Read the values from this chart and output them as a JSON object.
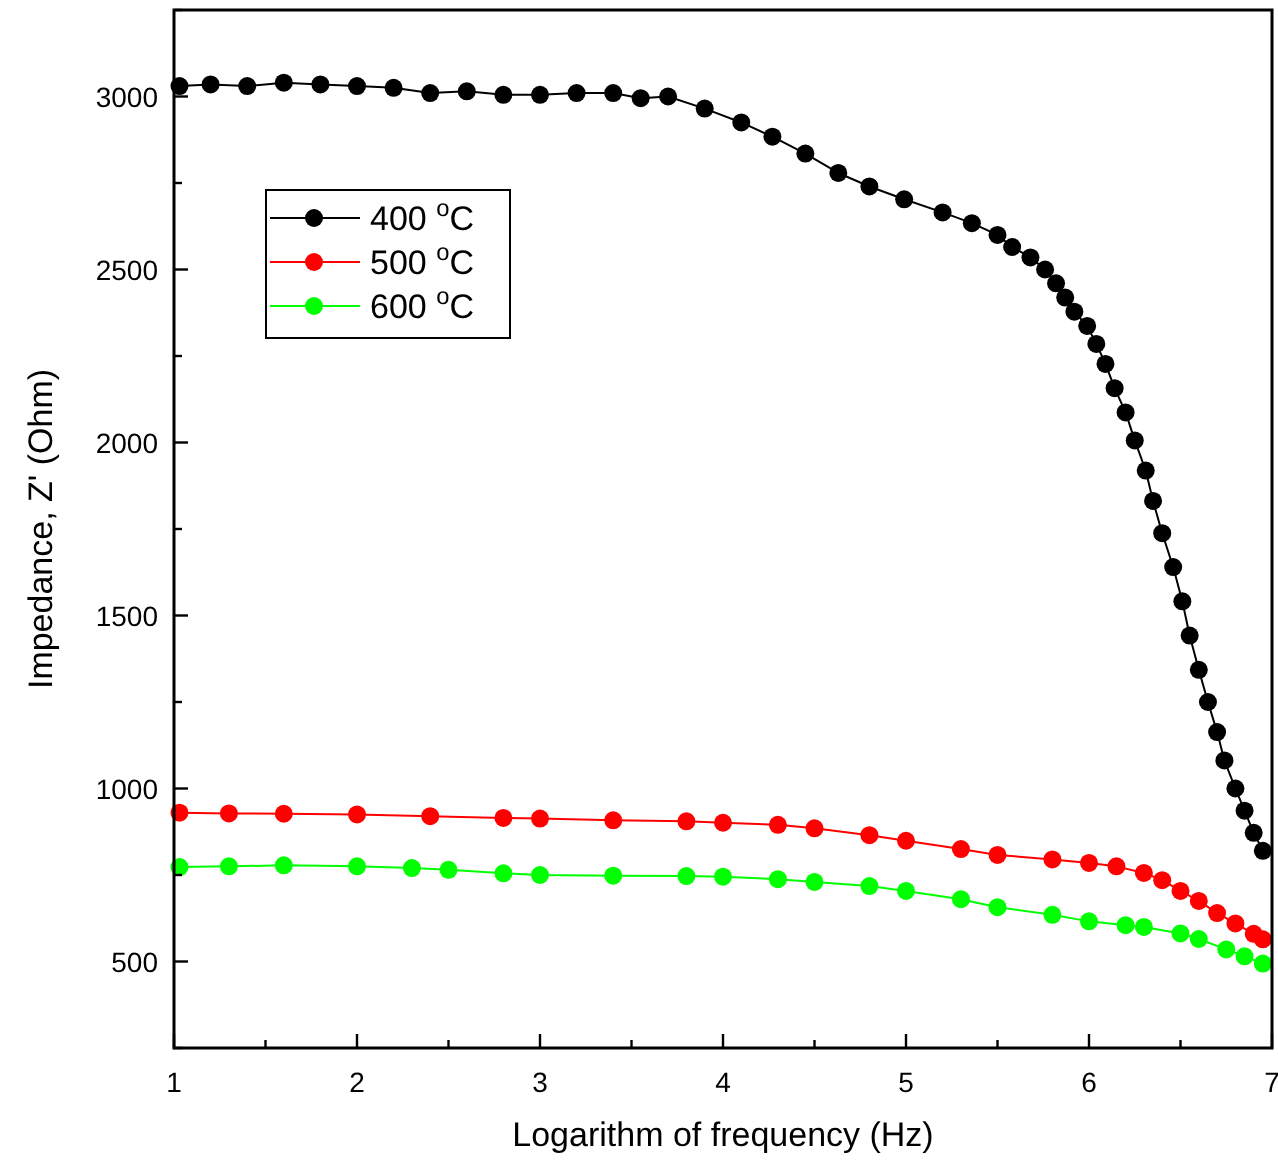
{
  "chart_data": {
    "type": "line",
    "xlabel": "Logarithm of frequency (Hz)",
    "ylabel": "Impedance, Z' (Ohm)",
    "xlim": [
      1,
      7
    ],
    "ylim": [
      250,
      3250
    ],
    "xticks": [
      1,
      {
        "value": 1.5,
        "label": null
      },
      2,
      {
        "value": 2.5,
        "label": null
      },
      3,
      {
        "value": 3.5,
        "label": null
      },
      4,
      {
        "value": 4.5,
        "label": null
      },
      5,
      {
        "value": 5.5,
        "label": null
      },
      6,
      {
        "value": 6.5,
        "label": null
      },
      7
    ],
    "yticks": [
      {
        "value": 250,
        "label": null
      },
      500,
      {
        "value": 750,
        "label": null
      },
      1000,
      {
        "value": 1250,
        "label": null
      },
      1500,
      {
        "value": 1750,
        "label": null
      },
      2000,
      {
        "value": 2250,
        "label": null
      },
      2500,
      {
        "value": 2750,
        "label": null
      },
      3000,
      {
        "value": 3250,
        "label": null
      }
    ],
    "marker": "circle",
    "legend": "top left",
    "grid": false,
    "series": [
      {
        "name": "400 $^{o}$C",
        "color": "#000000",
        "x": [
          1.03,
          1.2,
          1.4,
          1.6,
          1.8,
          2.0,
          2.2,
          2.4,
          2.6,
          2.8,
          3.0,
          3.2,
          3.4,
          3.55,
          3.7,
          3.9,
          4.1,
          4.27,
          4.45,
          4.63,
          4.8,
          4.99,
          5.2,
          5.36,
          5.5,
          5.58,
          5.68,
          5.76,
          5.82,
          5.87,
          5.92,
          5.99,
          6.04,
          6.09,
          6.14,
          6.2,
          6.25,
          6.31,
          6.35,
          6.4,
          6.46,
          6.51,
          6.55,
          6.6,
          6.65,
          6.7,
          6.74,
          6.8,
          6.85,
          6.9,
          6.95
        ],
        "values": [
          3030,
          3035,
          3030,
          3040,
          3035,
          3030,
          3025,
          3010,
          3015,
          3005,
          3005,
          3010,
          3010,
          2995,
          3000,
          2965,
          2925,
          2884,
          2835,
          2779,
          2740,
          2703,
          2665,
          2634,
          2600,
          2565,
          2535,
          2500,
          2460,
          2419,
          2378,
          2337,
          2285,
          2227,
          2157,
          2087,
          2006,
          1919,
          1831,
          1738,
          1640,
          1541,
          1442,
          1343,
          1250,
          1163,
          1081,
          1000,
          936,
          872,
          820
        ]
      },
      {
        "name": "500 $^{o}$C",
        "color": "#ff0000",
        "x": [
          1.03,
          1.3,
          1.6,
          2.0,
          2.4,
          2.8,
          3.0,
          3.4,
          3.8,
          4.0,
          4.3,
          4.5,
          4.8,
          5.0,
          5.3,
          5.5,
          5.8,
          6.0,
          6.15,
          6.3,
          6.4,
          6.5,
          6.6,
          6.7,
          6.8,
          6.9,
          6.95
        ],
        "values": [
          930,
          928,
          927,
          925,
          920,
          915,
          913,
          908,
          905,
          901,
          895,
          885,
          865,
          849,
          825,
          808,
          795,
          785,
          775,
          756,
          735,
          704,
          675,
          640,
          610,
          580,
          564
        ]
      },
      {
        "name": "600 $^{o}$C",
        "color": "#00ff00",
        "x": [
          1.03,
          1.3,
          1.6,
          2.0,
          2.3,
          2.5,
          2.8,
          3.0,
          3.4,
          3.8,
          4.0,
          4.3,
          4.5,
          4.8,
          5.0,
          5.3,
          5.5,
          5.8,
          6.0,
          6.2,
          6.3,
          6.5,
          6.6,
          6.75,
          6.85,
          6.95
        ],
        "values": [
          773,
          775,
          778,
          775,
          770,
          765,
          755,
          750,
          748,
          747,
          745,
          738,
          730,
          718,
          704,
          680,
          657,
          635,
          616,
          605,
          600,
          581,
          565,
          535,
          515,
          494
        ]
      }
    ]
  }
}
